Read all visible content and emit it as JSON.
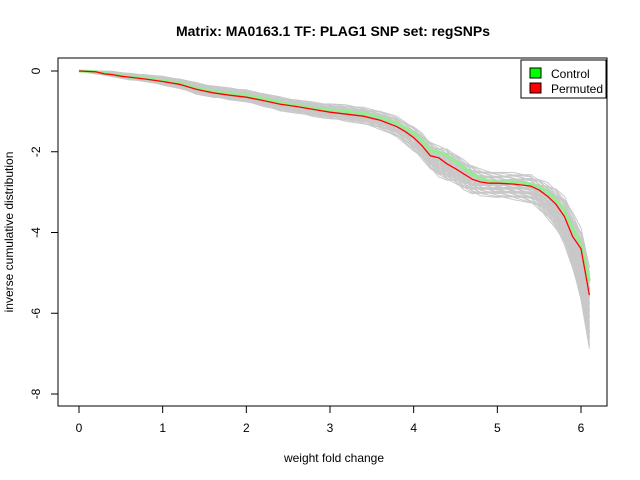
{
  "chart_data": {
    "type": "line",
    "title": "Matrix: MA0163.1 TF: PLAG1 SNP set: regSNPs",
    "xlabel": "weight fold change",
    "ylabel": "inverse cumulative distribution",
    "xlim": [
      0,
      6.1
    ],
    "ylim": [
      -8,
      0
    ],
    "x_ticks": [
      0,
      1,
      2,
      3,
      4,
      5,
      6
    ],
    "y_ticks": [
      0,
      -2,
      -4,
      -6,
      -8
    ],
    "grid": false,
    "legend_position": "top-right",
    "series": [
      {
        "name": "Control",
        "color": "#90ee90",
        "x": [
          0.0,
          0.2,
          0.3,
          0.4,
          0.5,
          0.6,
          0.8,
          1.0,
          1.2,
          1.4,
          1.6,
          1.8,
          2.0,
          2.2,
          2.4,
          2.6,
          2.8,
          3.0,
          3.2,
          3.4,
          3.6,
          3.8,
          3.9,
          4.0,
          4.1,
          4.2,
          4.3,
          4.4,
          4.5,
          4.6,
          4.7,
          4.8,
          4.9,
          5.0,
          5.2,
          5.4,
          5.5,
          5.6,
          5.7,
          5.8,
          5.9,
          6.0,
          6.1
        ],
        "values": [
          0.0,
          -0.02,
          -0.06,
          -0.08,
          -0.12,
          -0.14,
          -0.18,
          -0.24,
          -0.3,
          -0.42,
          -0.5,
          -0.56,
          -0.6,
          -0.68,
          -0.78,
          -0.85,
          -0.92,
          -0.97,
          -1.0,
          -1.05,
          -1.15,
          -1.3,
          -1.42,
          -1.55,
          -1.72,
          -1.98,
          -2.0,
          -2.1,
          -2.25,
          -2.4,
          -2.55,
          -2.65,
          -2.72,
          -2.75,
          -2.75,
          -2.8,
          -2.88,
          -3.0,
          -3.2,
          -3.45,
          -3.9,
          -4.3,
          -5.2
        ]
      },
      {
        "name": "Permuted",
        "color": "#ff0000",
        "x": [
          0.0,
          0.2,
          0.3,
          0.4,
          0.5,
          0.6,
          0.8,
          1.0,
          1.2,
          1.4,
          1.6,
          1.8,
          2.0,
          2.2,
          2.4,
          2.6,
          2.8,
          3.0,
          3.2,
          3.4,
          3.6,
          3.8,
          3.9,
          4.0,
          4.1,
          4.2,
          4.3,
          4.4,
          4.5,
          4.6,
          4.7,
          4.8,
          4.9,
          5.0,
          5.2,
          5.4,
          5.5,
          5.6,
          5.7,
          5.8,
          5.9,
          6.0,
          6.1
        ],
        "values": [
          0.0,
          -0.02,
          -0.07,
          -0.09,
          -0.13,
          -0.15,
          -0.2,
          -0.26,
          -0.33,
          -0.45,
          -0.54,
          -0.6,
          -0.65,
          -0.73,
          -0.82,
          -0.88,
          -0.95,
          -1.02,
          -1.07,
          -1.12,
          -1.22,
          -1.38,
          -1.5,
          -1.65,
          -1.85,
          -2.1,
          -2.15,
          -2.3,
          -2.42,
          -2.55,
          -2.68,
          -2.75,
          -2.78,
          -2.78,
          -2.8,
          -2.85,
          -2.95,
          -3.1,
          -3.3,
          -3.6,
          -4.1,
          -4.4,
          -5.55
        ]
      }
    ],
    "background_band": {
      "color": "#c8c8c8",
      "x": [
        0.0,
        0.2,
        0.4,
        0.6,
        0.8,
        1.0,
        1.2,
        1.4,
        1.6,
        1.8,
        2.0,
        2.2,
        2.4,
        2.6,
        2.8,
        3.0,
        3.2,
        3.4,
        3.6,
        3.8,
        4.0,
        4.1,
        4.2,
        4.3,
        4.4,
        4.5,
        4.6,
        4.7,
        4.8,
        5.0,
        5.2,
        5.4,
        5.5,
        5.6,
        5.7,
        5.8,
        5.9,
        6.0,
        6.1
      ],
      "upper": [
        0.0,
        -0.01,
        -0.05,
        -0.1,
        -0.13,
        -0.18,
        -0.24,
        -0.34,
        -0.42,
        -0.48,
        -0.52,
        -0.6,
        -0.7,
        -0.77,
        -0.84,
        -0.88,
        -0.92,
        -0.97,
        -1.05,
        -1.2,
        -1.45,
        -1.62,
        -1.85,
        -1.95,
        -2.0,
        -2.12,
        -2.28,
        -2.42,
        -2.52,
        -2.6,
        -2.62,
        -2.65,
        -2.75,
        -2.85,
        -3.0,
        -3.2,
        -3.6,
        -4.0,
        -4.9
      ],
      "lower": [
        0.0,
        -0.03,
        -0.1,
        -0.18,
        -0.22,
        -0.3,
        -0.38,
        -0.52,
        -0.6,
        -0.66,
        -0.72,
        -0.82,
        -0.92,
        -0.98,
        -1.06,
        -1.12,
        -1.18,
        -1.25,
        -1.38,
        -1.55,
        -1.9,
        -2.1,
        -2.35,
        -2.55,
        -2.65,
        -2.72,
        -2.85,
        -2.95,
        -3.0,
        -3.05,
        -3.1,
        -3.2,
        -3.35,
        -3.55,
        -3.8,
        -4.2,
        -4.8,
        -5.6,
        -6.85
      ]
    },
    "legend": [
      "Control",
      "Permuted"
    ]
  }
}
